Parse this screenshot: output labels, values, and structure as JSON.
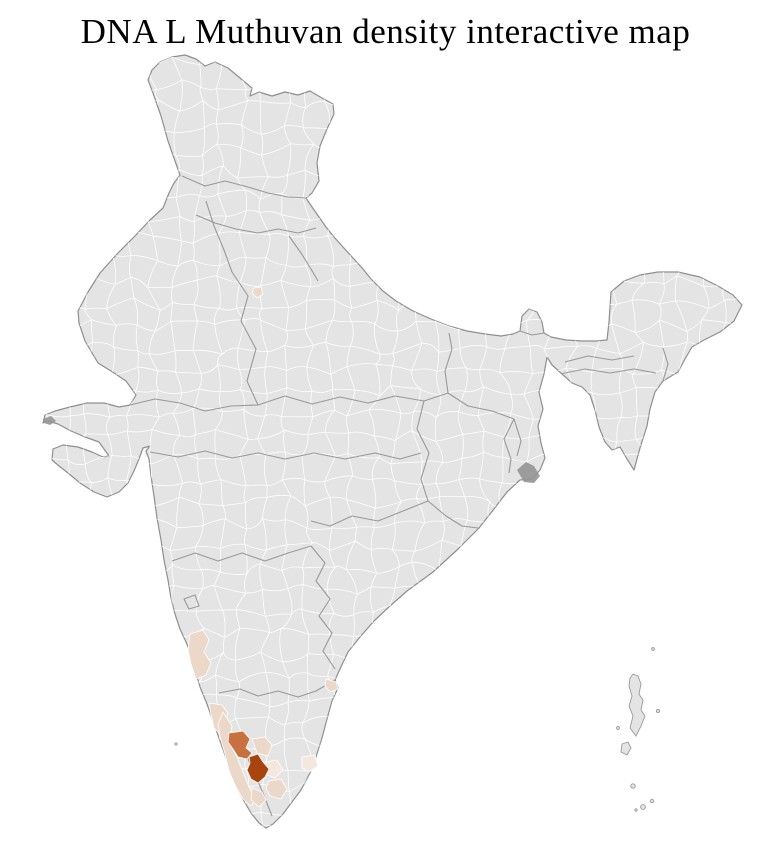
{
  "title": "DNA L Muthuvan density interactive map",
  "map": {
    "description": "India district-level choropleth, density highlighted in the south-west peninsula",
    "palette": {
      "background": "#ffffff",
      "district_fill": "#e4e4e4",
      "district_border": "#ffffff",
      "state_border": "#999999",
      "country_border": "#8f8f8f",
      "water_patch": "#949494",
      "density": {
        "very_low": "#f4e8de",
        "low": "#ecd8c8",
        "medium": "#c8703f",
        "high": "#a8450f"
      }
    },
    "highlighted_districts": [
      {
        "area": "west-coast-karnataka",
        "level": "low"
      },
      {
        "area": "north-kerala-coast",
        "level": "low"
      },
      {
        "area": "central-kerala",
        "level": "medium"
      },
      {
        "area": "central-kerala-high-range",
        "level": "high"
      },
      {
        "area": "kerala-coastal-strip",
        "level": "low"
      },
      {
        "area": "western-tamil-nadu",
        "level": "low"
      },
      {
        "area": "southern-tamil-nadu",
        "level": "low"
      },
      {
        "area": "east-coast-near-chennai",
        "level": "low"
      },
      {
        "area": "delhi-area",
        "level": "low"
      },
      {
        "area": "western-tamil-nadu-2",
        "level": "very_low"
      },
      {
        "area": "northern-tamil-nadu",
        "level": "very_low"
      },
      {
        "area": "south-kerala-interior",
        "level": "low"
      }
    ]
  }
}
